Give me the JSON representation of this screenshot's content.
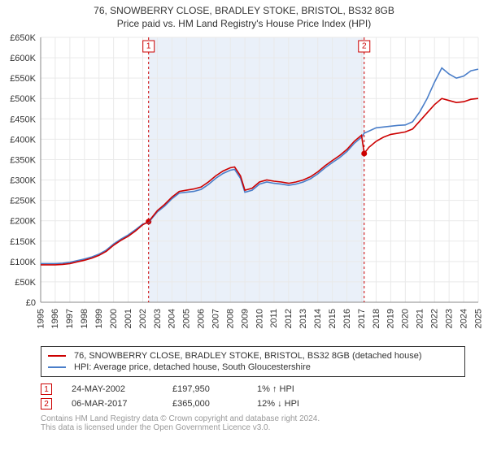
{
  "title_line1": "76, SNOWBERRY CLOSE, BRADLEY STOKE, BRISTOL, BS32 8GB",
  "title_line2": "Price paid vs. HM Land Registry's House Price Index (HPI)",
  "chart": {
    "type": "line",
    "plot_background": "#ffffff",
    "grid_color": "#e9e9e9",
    "axis_color": "#888888",
    "y": {
      "min": 0,
      "max": 650000,
      "step": 50000,
      "labels": [
        "£0",
        "£50K",
        "£100K",
        "£150K",
        "£200K",
        "£250K",
        "£300K",
        "£350K",
        "£400K",
        "£450K",
        "£500K",
        "£550K",
        "£600K",
        "£650K"
      ],
      "label_fontsize": 11
    },
    "x": {
      "min": 1995,
      "max": 2025,
      "step": 1,
      "labels": [
        "1995",
        "1996",
        "1997",
        "1998",
        "1999",
        "2000",
        "2001",
        "2002",
        "2003",
        "2004",
        "2005",
        "2006",
        "2007",
        "2008",
        "2009",
        "2010",
        "2011",
        "2012",
        "2013",
        "2014",
        "2015",
        "2016",
        "2017",
        "2018",
        "2019",
        "2020",
        "2021",
        "2022",
        "2023",
        "2024",
        "2025"
      ],
      "label_fontsize": 11,
      "label_rotation": -90
    },
    "shaded_band": {
      "from_year": 2002.4,
      "to_year": 2017.18,
      "color": "#eaf0f9"
    },
    "events": [
      {
        "n": "1",
        "year": 2002.4,
        "price": 197950,
        "color": "#cc0000",
        "dash_color": "#cc0000",
        "date": "24-MAY-2002",
        "price_label": "£197,950",
        "diff": "1% ↑ HPI"
      },
      {
        "n": "2",
        "year": 2017.18,
        "price": 365000,
        "color": "#cc0000",
        "dash_color": "#cc0000",
        "date": "06-MAR-2017",
        "price_label": "£365,000",
        "diff": "12% ↓ HPI"
      }
    ],
    "series": [
      {
        "name": "property",
        "label": "76, SNOWBERRY CLOSE, BRADLEY STOKE, BRISTOL, BS32 8GB (detached house)",
        "color": "#cc0000",
        "line_width": 1.6,
        "points": [
          [
            1995,
            92000
          ],
          [
            1995.5,
            92000
          ],
          [
            1996,
            92000
          ],
          [
            1996.5,
            93000
          ],
          [
            1997,
            95000
          ],
          [
            1997.5,
            99000
          ],
          [
            1998,
            103000
          ],
          [
            1998.5,
            108000
          ],
          [
            1999,
            115000
          ],
          [
            1999.5,
            125000
          ],
          [
            2000,
            140000
          ],
          [
            2000.5,
            152000
          ],
          [
            2001,
            162000
          ],
          [
            2001.5,
            175000
          ],
          [
            2002,
            190000
          ],
          [
            2002.4,
            197950
          ],
          [
            2003,
            225000
          ],
          [
            2003.5,
            240000
          ],
          [
            2004,
            258000
          ],
          [
            2004.5,
            272000
          ],
          [
            2005,
            275000
          ],
          [
            2005.5,
            278000
          ],
          [
            2006,
            283000
          ],
          [
            2006.5,
            295000
          ],
          [
            2007,
            310000
          ],
          [
            2007.5,
            322000
          ],
          [
            2008,
            330000
          ],
          [
            2008.3,
            332000
          ],
          [
            2008.7,
            310000
          ],
          [
            2009,
            275000
          ],
          [
            2009.5,
            280000
          ],
          [
            2010,
            295000
          ],
          [
            2010.5,
            300000
          ],
          [
            2011,
            297000
          ],
          [
            2011.5,
            295000
          ],
          [
            2012,
            292000
          ],
          [
            2012.5,
            295000
          ],
          [
            2013,
            300000
          ],
          [
            2013.5,
            308000
          ],
          [
            2014,
            320000
          ],
          [
            2014.5,
            335000
          ],
          [
            2015,
            348000
          ],
          [
            2015.5,
            360000
          ],
          [
            2016,
            375000
          ],
          [
            2016.5,
            395000
          ],
          [
            2017,
            410000
          ],
          [
            2017.18,
            365000
          ],
          [
            2017.5,
            380000
          ],
          [
            2018,
            395000
          ],
          [
            2018.5,
            405000
          ],
          [
            2019,
            412000
          ],
          [
            2019.5,
            415000
          ],
          [
            2020,
            418000
          ],
          [
            2020.5,
            425000
          ],
          [
            2021,
            445000
          ],
          [
            2021.5,
            465000
          ],
          [
            2022,
            485000
          ],
          [
            2022.5,
            500000
          ],
          [
            2023,
            495000
          ],
          [
            2023.5,
            490000
          ],
          [
            2024,
            492000
          ],
          [
            2024.5,
            498000
          ],
          [
            2025,
            500000
          ]
        ]
      },
      {
        "name": "hpi",
        "label": "HPI: Average price, detached house, South Gloucestershire",
        "color": "#4a7ec9",
        "line_width": 1.6,
        "points": [
          [
            1995,
            95000
          ],
          [
            1995.5,
            95000
          ],
          [
            1996,
            95000
          ],
          [
            1996.5,
            96000
          ],
          [
            1997,
            98000
          ],
          [
            1997.5,
            102000
          ],
          [
            1998,
            106000
          ],
          [
            1998.5,
            111000
          ],
          [
            1999,
            118000
          ],
          [
            1999.5,
            128000
          ],
          [
            2000,
            143000
          ],
          [
            2000.5,
            155000
          ],
          [
            2001,
            165000
          ],
          [
            2001.5,
            178000
          ],
          [
            2002,
            192000
          ],
          [
            2002.4,
            196000
          ],
          [
            2003,
            222000
          ],
          [
            2003.5,
            236000
          ],
          [
            2004,
            254000
          ],
          [
            2004.5,
            268000
          ],
          [
            2005,
            270000
          ],
          [
            2005.5,
            272000
          ],
          [
            2006,
            277000
          ],
          [
            2006.5,
            289000
          ],
          [
            2007,
            304000
          ],
          [
            2007.5,
            316000
          ],
          [
            2008,
            324000
          ],
          [
            2008.3,
            326000
          ],
          [
            2008.7,
            304000
          ],
          [
            2009,
            270000
          ],
          [
            2009.5,
            275000
          ],
          [
            2010,
            290000
          ],
          [
            2010.5,
            295000
          ],
          [
            2011,
            292000
          ],
          [
            2011.5,
            290000
          ],
          [
            2012,
            287000
          ],
          [
            2012.5,
            290000
          ],
          [
            2013,
            295000
          ],
          [
            2013.5,
            303000
          ],
          [
            2014,
            315000
          ],
          [
            2014.5,
            330000
          ],
          [
            2015,
            343000
          ],
          [
            2015.5,
            355000
          ],
          [
            2016,
            370000
          ],
          [
            2016.5,
            390000
          ],
          [
            2017,
            405000
          ],
          [
            2017.18,
            415000
          ],
          [
            2017.5,
            420000
          ],
          [
            2018,
            428000
          ],
          [
            2018.5,
            430000
          ],
          [
            2019,
            432000
          ],
          [
            2019.5,
            434000
          ],
          [
            2020,
            435000
          ],
          [
            2020.5,
            443000
          ],
          [
            2021,
            468000
          ],
          [
            2021.5,
            500000
          ],
          [
            2022,
            540000
          ],
          [
            2022.5,
            575000
          ],
          [
            2023,
            560000
          ],
          [
            2023.5,
            550000
          ],
          [
            2024,
            555000
          ],
          [
            2024.5,
            568000
          ],
          [
            2025,
            572000
          ]
        ]
      }
    ]
  },
  "legend": [
    {
      "color": "#cc0000",
      "label": "76, SNOWBERRY CLOSE, BRADLEY STOKE, BRISTOL, BS32 8GB (detached house)"
    },
    {
      "color": "#4a7ec9",
      "label": "HPI: Average price, detached house, South Gloucestershire"
    }
  ],
  "attribution_line1": "Contains HM Land Registry data © Crown copyright and database right 2024.",
  "attribution_line2": "This data is licensed under the Open Government Licence v3.0."
}
